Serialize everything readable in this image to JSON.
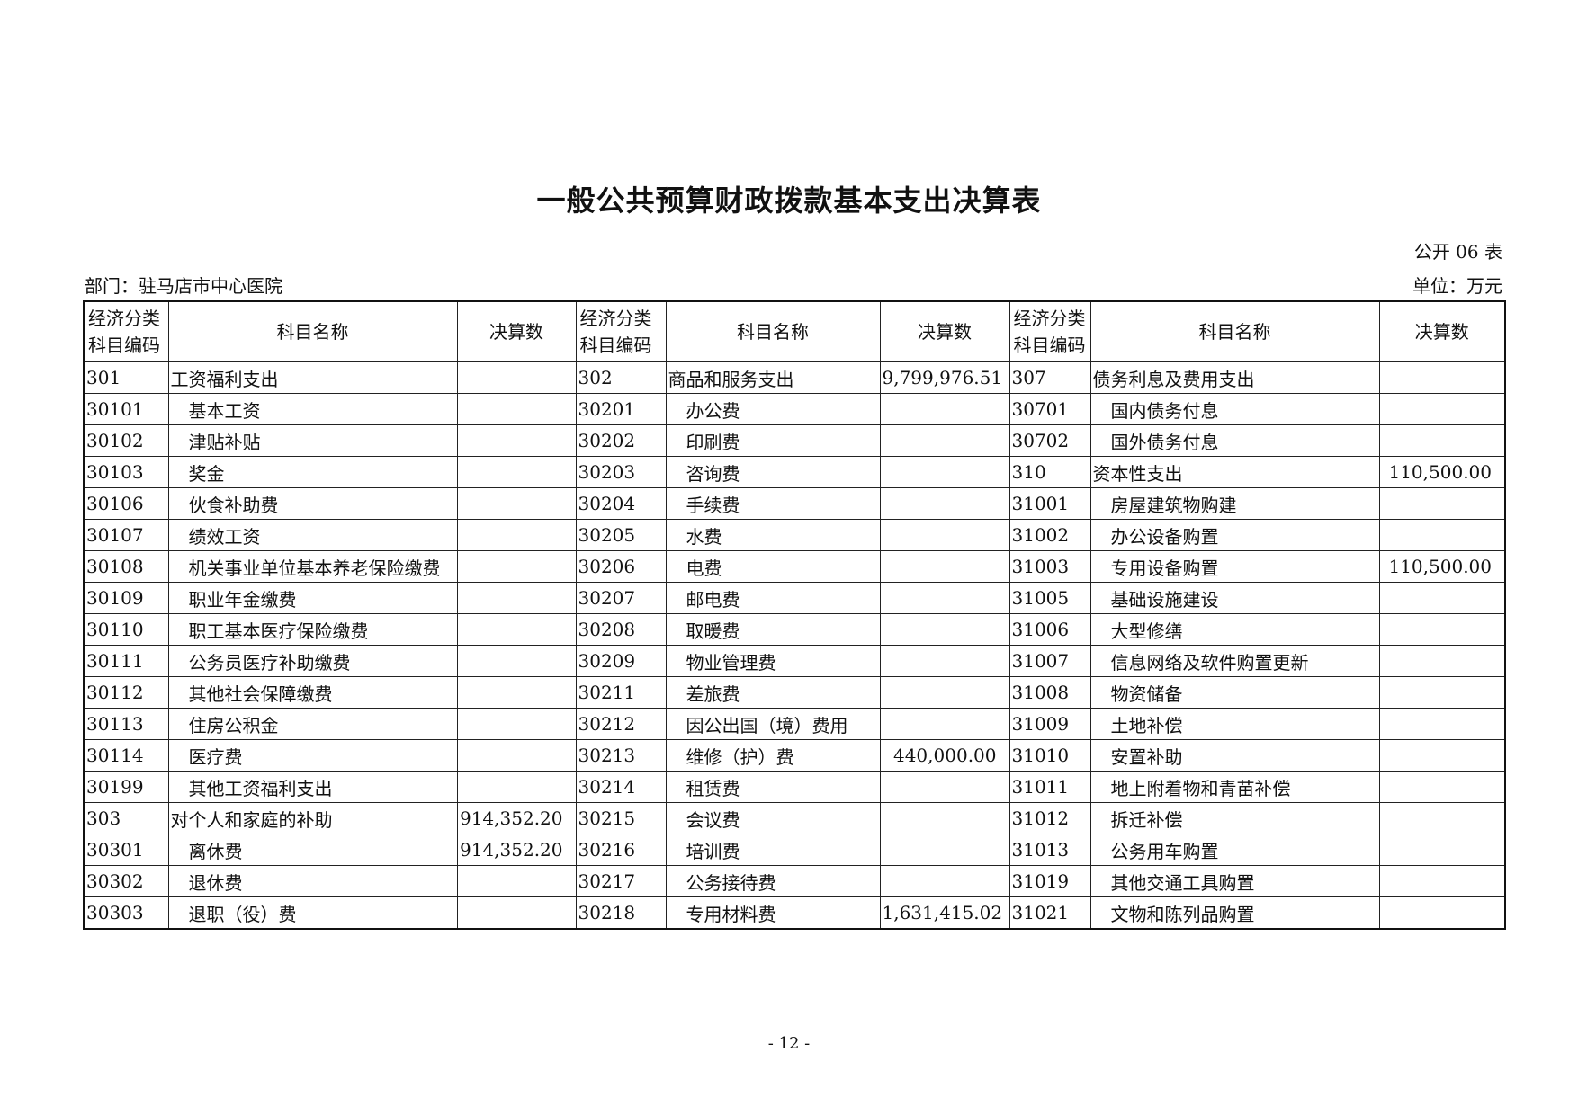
{
  "title": "一般公共预算财政拨款基本支出决算表",
  "table_no": "公开 06 表",
  "department": "部门：驻马店市中心医院",
  "unit": "单位：万元",
  "headers": {
    "code": "经济分类\n科目编码",
    "code_l1": "经济分类",
    "code_l2": "科目编码",
    "name": "科目名称",
    "amount": "决算数"
  },
  "rows": [
    [
      [
        "301",
        "工资福利支出",
        ""
      ],
      [
        "302",
        "商品和服务支出",
        "9,799,976.51"
      ],
      [
        "307",
        "债务利息及费用支出",
        ""
      ]
    ],
    [
      [
        "30101",
        "基本工资",
        ""
      ],
      [
        "30201",
        "办公费",
        ""
      ],
      [
        "30701",
        "国内债务付息",
        ""
      ]
    ],
    [
      [
        "30102",
        "津贴补贴",
        ""
      ],
      [
        "30202",
        "印刷费",
        ""
      ],
      [
        "30702",
        "国外债务付息",
        ""
      ]
    ],
    [
      [
        "30103",
        "奖金",
        ""
      ],
      [
        "30203",
        "咨询费",
        ""
      ],
      [
        "310",
        "资本性支出",
        "110,500.00"
      ]
    ],
    [
      [
        "30106",
        "伙食补助费",
        ""
      ],
      [
        "30204",
        "手续费",
        ""
      ],
      [
        "31001",
        "房屋建筑物购建",
        ""
      ]
    ],
    [
      [
        "30107",
        "绩效工资",
        ""
      ],
      [
        "30205",
        "水费",
        ""
      ],
      [
        "31002",
        "办公设备购置",
        ""
      ]
    ],
    [
      [
        "30108",
        "机关事业单位基本养老保险缴费",
        ""
      ],
      [
        "30206",
        "电费",
        ""
      ],
      [
        "31003",
        "专用设备购置",
        "110,500.00"
      ]
    ],
    [
      [
        "30109",
        "职业年金缴费",
        ""
      ],
      [
        "30207",
        "邮电费",
        ""
      ],
      [
        "31005",
        "基础设施建设",
        ""
      ]
    ],
    [
      [
        "30110",
        "职工基本医疗保险缴费",
        ""
      ],
      [
        "30208",
        "取暖费",
        ""
      ],
      [
        "31006",
        "大型修缮",
        ""
      ]
    ],
    [
      [
        "30111",
        "公务员医疗补助缴费",
        ""
      ],
      [
        "30209",
        "物业管理费",
        ""
      ],
      [
        "31007",
        "信息网络及软件购置更新",
        ""
      ]
    ],
    [
      [
        "30112",
        "其他社会保障缴费",
        ""
      ],
      [
        "30211",
        "差旅费",
        ""
      ],
      [
        "31008",
        "物资储备",
        ""
      ]
    ],
    [
      [
        "30113",
        "住房公积金",
        ""
      ],
      [
        "30212",
        "因公出国（境）费用",
        ""
      ],
      [
        "31009",
        "土地补偿",
        ""
      ]
    ],
    [
      [
        "30114",
        "医疗费",
        ""
      ],
      [
        "30213",
        "维修（护）费",
        "440,000.00"
      ],
      [
        "31010",
        "安置补助",
        ""
      ]
    ],
    [
      [
        "30199",
        "其他工资福利支出",
        ""
      ],
      [
        "30214",
        "租赁费",
        ""
      ],
      [
        "31011",
        "地上附着物和青苗补偿",
        ""
      ]
    ],
    [
      [
        "303",
        "对个人和家庭的补助",
        "914,352.20"
      ],
      [
        "30215",
        "会议费",
        ""
      ],
      [
        "31012",
        "拆迁补偿",
        ""
      ]
    ],
    [
      [
        "30301",
        "离休费",
        "914,352.20"
      ],
      [
        "30216",
        "培训费",
        ""
      ],
      [
        "31013",
        "公务用车购置",
        ""
      ]
    ],
    [
      [
        "30302",
        "退休费",
        ""
      ],
      [
        "30217",
        "公务接待费",
        ""
      ],
      [
        "31019",
        "其他交通工具购置",
        ""
      ]
    ],
    [
      [
        "30303",
        "退职（役）费",
        ""
      ],
      [
        "30218",
        "专用材料费",
        "1,631,415.02"
      ],
      [
        "31021",
        "文物和陈列品购置",
        ""
      ]
    ]
  ],
  "page_number": "- 12 -"
}
